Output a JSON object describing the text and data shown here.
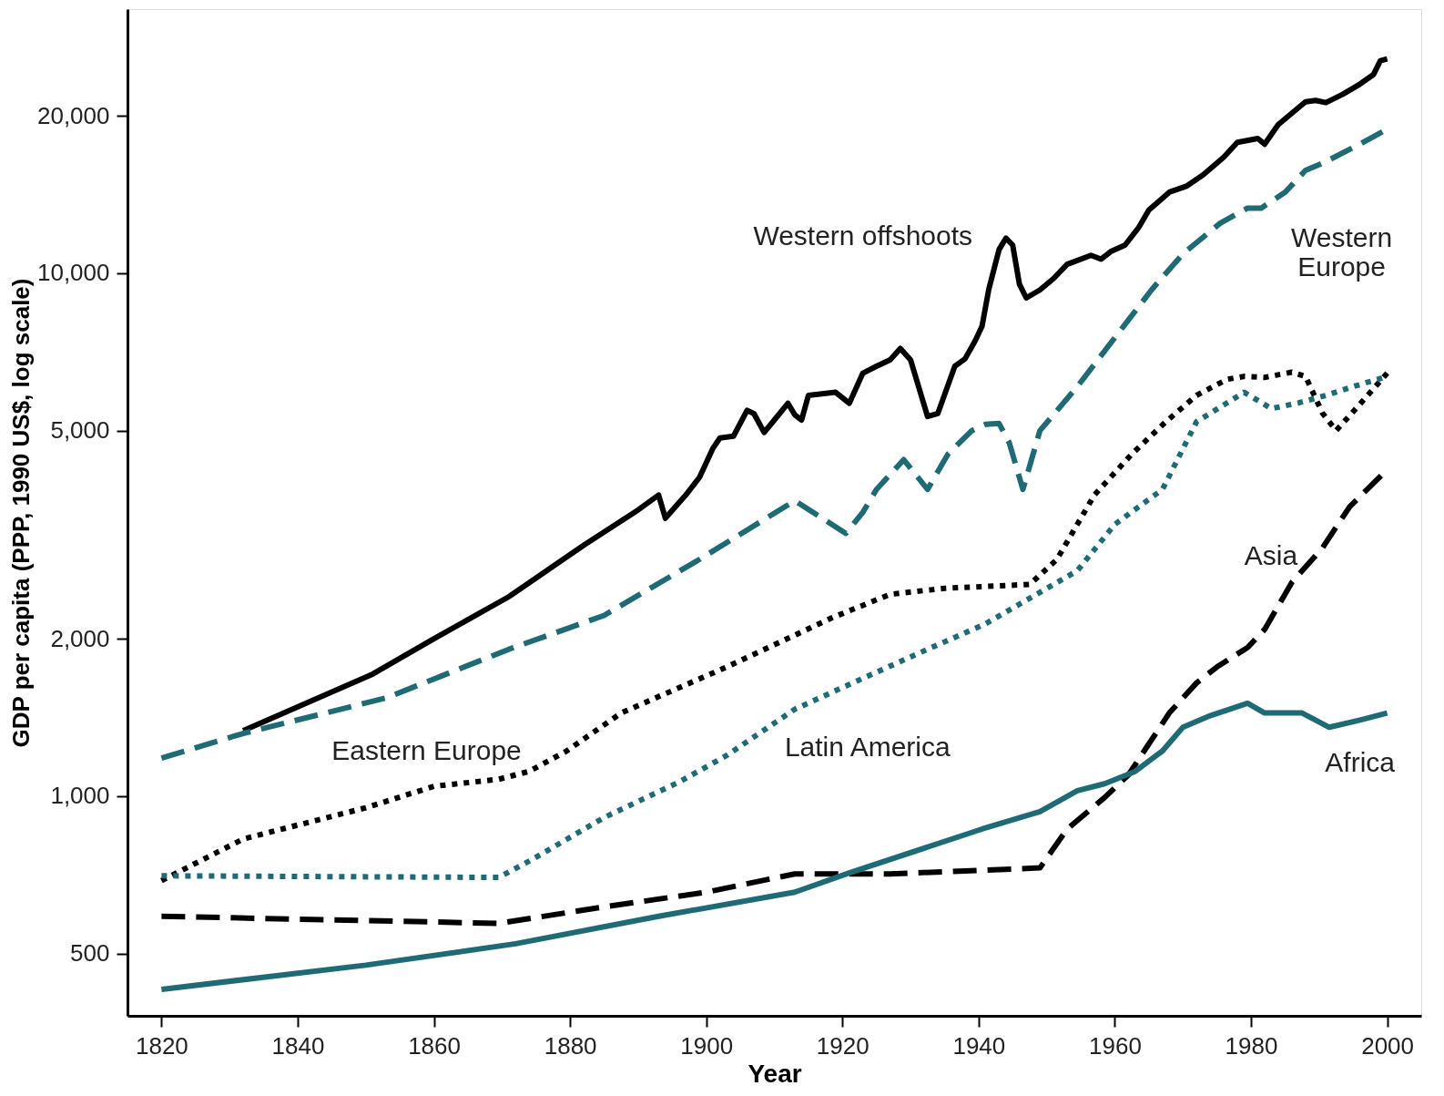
{
  "chart_data": {
    "type": "line",
    "xlabel": "Year",
    "ylabel": "GDP per capita (PPP, 1990 US$, log scale)",
    "log": "y",
    "grid": false,
    "xlim": [
      1815,
      2005
    ],
    "xticks": [
      1820,
      1840,
      1860,
      1880,
      1900,
      1920,
      1940,
      1960,
      1980,
      2000
    ],
    "ylim": [
      380,
      32000
    ],
    "yticks": [
      {
        "value": 500,
        "label": "500"
      },
      {
        "value": 1000,
        "label": "1,000"
      },
      {
        "value": 2000,
        "label": "2,000"
      },
      {
        "value": 5000,
        "label": "5,000"
      },
      {
        "value": 10000,
        "label": "10,000"
      },
      {
        "value": 20000,
        "label": "20,000"
      }
    ],
    "series": [
      {
        "name": "Western offshoots",
        "color": "#000000",
        "line_style": "solid",
        "x": [
          1832,
          1851,
          1860,
          1871,
          1882,
          1890,
          1893,
          1894,
          1897,
          1899,
          1901,
          1902,
          1904,
          1906,
          1907,
          1908.5,
          1910,
          1912,
          1913,
          1914,
          1915,
          1919,
          1921,
          1923,
          1925,
          1927,
          1928.5,
          1930,
          1932.5,
          1934,
          1936.5,
          1938,
          1939.5,
          1940.5,
          1941.5,
          1943,
          1944,
          1945,
          1946,
          1947,
          1949,
          1951,
          1953,
          1956.5,
          1958,
          1959.5,
          1961.5,
          1963.5,
          1965,
          1968,
          1970.5,
          1973,
          1976,
          1978,
          1981,
          1982,
          1984,
          1988,
          1989.5,
          1991,
          1993.5,
          1996,
          1998,
          1999,
          2000
        ],
        "values": [
          1334,
          1711,
          2000,
          2406,
          3018,
          3527,
          3766,
          3400,
          3766,
          4070,
          4630,
          4840,
          4880,
          5468,
          5390,
          4960,
          5240,
          5640,
          5360,
          5240,
          5840,
          5920,
          5640,
          6440,
          6640,
          6830,
          7180,
          6830,
          5320,
          5390,
          6640,
          6860,
          7430,
          7920,
          9330,
          11100,
          11670,
          11320,
          9520,
          8970,
          9290,
          9770,
          10400,
          10820,
          10640,
          11020,
          11320,
          12230,
          13210,
          14290,
          14670,
          15430,
          16670,
          17800,
          18100,
          17650,
          19240,
          21270,
          21400,
          21200,
          22000,
          23000,
          24000,
          25500,
          25700
        ]
      },
      {
        "name": "Western\nEurope",
        "color": "#1f6b75",
        "line_style": "dashed",
        "x": [
          1820,
          1832,
          1853,
          1871,
          1885,
          1899,
          1913,
          1920.5,
          1923,
          1925,
          1929,
          1932.5,
          1935.5,
          1939,
          1941,
          1943,
          1944.5,
          1946.5,
          1949,
          1954.5,
          1960,
          1965.5,
          1970,
          1975.5,
          1979.5,
          1981.5,
          1985,
          1988,
          1990.5,
          1996,
          2000
        ],
        "values": [
          1182,
          1318,
          1541,
          1909,
          2216,
          2836,
          3673,
          3180,
          3490,
          3860,
          4400,
          3860,
          4510,
          5000,
          5140,
          5160,
          4740,
          3860,
          5000,
          6070,
          7530,
          9330,
          10890,
          12470,
          13320,
          13320,
          14280,
          15730,
          16230,
          17670,
          18870
        ]
      },
      {
        "name": "Eastern Europe",
        "color": "#000000",
        "line_style": "dotted",
        "x": [
          1820,
          1832,
          1850,
          1860,
          1869.5,
          1874,
          1879.5,
          1887.5,
          1903,
          1913,
          1918.5,
          1927,
          1935,
          1947.5,
          1951.5,
          1957,
          1962.5,
          1967.5,
          1972,
          1976.5,
          1979,
          1982,
          1986,
          1988,
          1990.5,
          1992.5,
          1996,
          2000
        ],
        "values": [
          689,
          828,
          950,
          1044,
          1077,
          1115,
          1220,
          1442,
          1766,
          2031,
          2194,
          2432,
          2497,
          2540,
          2836,
          3766,
          4510,
          5200,
          5840,
          6270,
          6350,
          6320,
          6470,
          6350,
          5400,
          5000,
          5620,
          6440
        ]
      },
      {
        "name": "Latin America",
        "color": "#1f6b75",
        "line_style": "dotted",
        "x": [
          1820,
          1869.5,
          1874,
          1885,
          1896,
          1903,
          1913,
          1921,
          1932.5,
          1941,
          1954.5,
          1960,
          1967,
          1972,
          1979,
          1983,
          1987,
          1991,
          1995,
          2000
        ],
        "values": [
          704,
          699,
          751,
          910,
          1064,
          1196,
          1466,
          1635,
          1909,
          2135,
          2699,
          3310,
          3860,
          5200,
          5920,
          5510,
          5650,
          5840,
          6070,
          6350
        ]
      },
      {
        "name": "Asia",
        "color": "#000000",
        "line_style": "dashed",
        "x": [
          1820,
          1869.5,
          1885,
          1900,
          1913,
          1927,
          1949,
          1953,
          1958.5,
          1962,
          1968,
          1972,
          1975,
          1979.5,
          1982,
          1986,
          1990.5,
          1994.5,
          2000
        ],
        "values": [
          589,
          571,
          614,
          655,
          710,
          710,
          729,
          865,
          994,
          1098,
          1442,
          1646,
          1766,
          1924,
          2083,
          2563,
          2984,
          3578,
          4210
        ]
      },
      {
        "name": "Africa",
        "color": "#1f6b75",
        "line_style": "solid",
        "x": [
          1820,
          1850,
          1872,
          1893,
          1913,
          1921,
          1940.5,
          1949,
          1954.5,
          1958.5,
          1963,
          1967,
          1970,
          1974,
          1979.5,
          1982,
          1987.5,
          1991.5,
          1996,
          2000
        ],
        "values": [
          427,
          475,
          522,
          589,
          655,
          713,
          865,
          934,
          1024,
          1056,
          1115,
          1220,
          1354,
          1425,
          1505,
          1442,
          1442,
          1354,
          1398,
          1442
        ]
      }
    ]
  }
}
